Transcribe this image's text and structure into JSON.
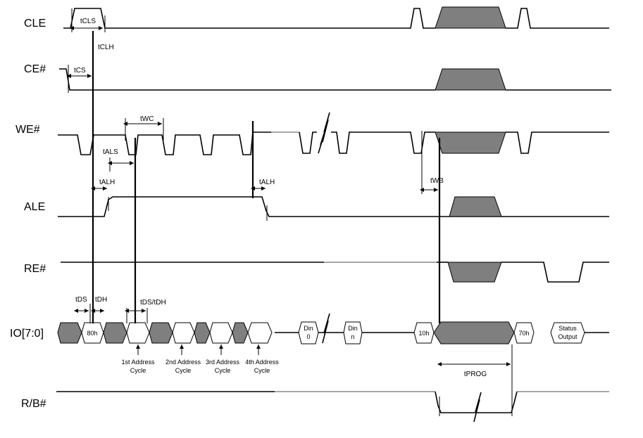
{
  "signals": {
    "cle": "CLE",
    "ce": "CE#",
    "we": "WE#",
    "ale": "ALE",
    "re": "RE#",
    "io": "IO[7:0]",
    "rb": "R/B#"
  },
  "timings": {
    "tcls": "tCLS",
    "tclh": "tCLH",
    "tcs": "tCS",
    "twc": "tWC",
    "tals": "tALS",
    "talh1": "tALH",
    "talh2": "tALH",
    "twb": "tWB",
    "tds1": "tDS",
    "tdh1": "tDH",
    "tdstdh": "tDS/tDH",
    "tprog": "tPROG"
  },
  "bus": {
    "cmd1": "80h",
    "din0_a": "Din",
    "din0_b": "0",
    "dinn_a": "Din",
    "dinn_b": "n",
    "cmd2": "10h",
    "cmd3": "70h",
    "status_a": "Status",
    "status_b": "Output"
  },
  "cycles": {
    "c1a": "1st Address",
    "c1b": "Cycle",
    "c2a": "2nd Address",
    "c2b": "Cycle",
    "c3a": "3rd Address",
    "c3b": "Cycle",
    "c4a": "4th Address",
    "c4b": "Cycle"
  }
}
